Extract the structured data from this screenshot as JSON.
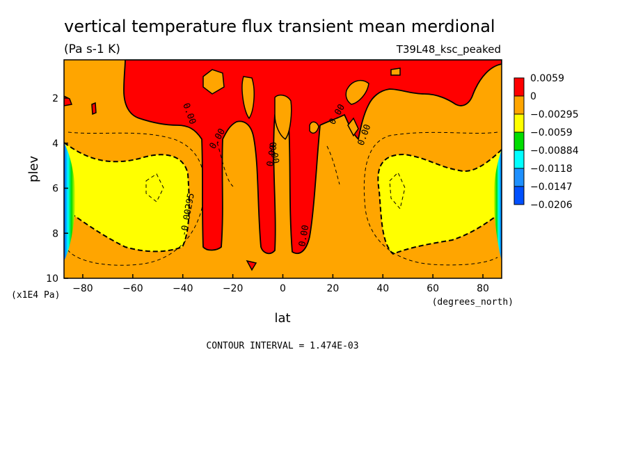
{
  "chart_data": {
    "type": "heatmap",
    "title": "vertical temperature flux transient mean merdional",
    "units": "(Pa s-1 K)",
    "dataset_label": "T39L48_ksc_peaked",
    "xlabel": "lat",
    "x_units": "(degrees_north)",
    "ylabel": "plev",
    "y_units": "(x1E4 Pa)",
    "xlim": [
      -87.5,
      87.5
    ],
    "ylim": [
      10,
      0.3
    ],
    "x_ticks": [
      -80,
      -60,
      -40,
      -20,
      0,
      20,
      40,
      60,
      80
    ],
    "y_ticks": [
      2,
      4,
      6,
      8,
      10
    ],
    "contour_interval_label": "CONTOUR INTERVAL = 1.474E-03",
    "contour_labels": [
      "0.00",
      "0.00",
      "0.00",
      "0.00",
      "0.00",
      "0.00",
      "0.00",
      "-0.00295"
    ],
    "colorbar": {
      "labels": [
        "0.0059",
        "0",
        "-0.00295",
        "-0.0059",
        "-0.00884",
        "-0.0118",
        "-0.0147",
        "-0.0206"
      ],
      "colors": [
        "#ff0000",
        "#ffa500",
        "#ffff00",
        "#00dd00",
        "#00ffff",
        "#1e90ff",
        "#0050ff"
      ]
    },
    "regions": [
      {
        "level": "positive",
        "color": "#ff0000",
        "description_value": "> 0"
      },
      {
        "level": "background",
        "color": "#ffa500",
        "description_value": "0 to -0.00295"
      },
      {
        "level": "negative",
        "color": "#ffff00",
        "description_value": "-0.00295 to -0.0059"
      },
      {
        "level": "strong_negative",
        "color": "#00dd00",
        "description_value": "< -0.0059"
      }
    ],
    "grid": false
  }
}
